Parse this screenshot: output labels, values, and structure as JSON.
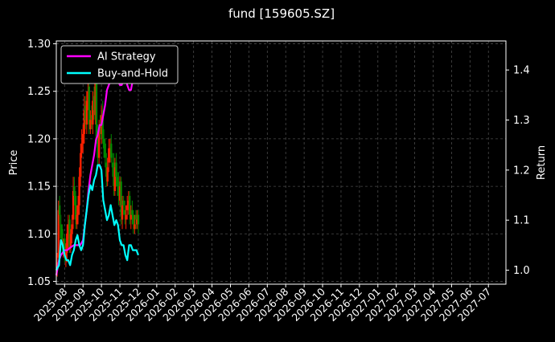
{
  "chart_data": {
    "type": "line",
    "title": "fund [159605.SZ]",
    "ylabel": "Price",
    "y2label": "Return",
    "ylim": [
      1.047,
      1.303
    ],
    "y2lim": [
      0.972,
      1.458
    ],
    "yticks": [
      1.05,
      1.1,
      1.15,
      1.2,
      1.25,
      1.3
    ],
    "y2ticks": [
      1.0,
      1.1,
      1.2,
      1.3,
      1.4
    ],
    "xticks": [
      "2025-08",
      "2025-09",
      "2025-10",
      "2025-11",
      "2025-12",
      "2026-01",
      "2026-02",
      "2026-03",
      "2026-04",
      "2026-05",
      "2026-06",
      "2026-07",
      "2026-08",
      "2026-09",
      "2026-10",
      "2026-11",
      "2026-12",
      "2027-01",
      "2027-02",
      "2027-03",
      "2027-04",
      "2027-05",
      "2027-06",
      "2027-07"
    ],
    "xlim_months": [
      -0.45,
      23.95
    ],
    "grid": true,
    "legend_placement": "top-left",
    "colors": {
      "up": "#ff2000",
      "down": "#008800",
      "ai": "#ff00ff",
      "bh": "#00ffff",
      "grid": "#4a4a4a"
    },
    "series": [
      {
        "name": "AI Strategy",
        "axis": "return",
        "t": [
          -0.45,
          -0.3,
          -0.2,
          0,
          0.15,
          0.3,
          0.5,
          0.7,
          0.85,
          1.0,
          1.1,
          1.2,
          1.3,
          1.4,
          1.5,
          1.6,
          1.7,
          1.8,
          1.9,
          2.0,
          2.1,
          2.2,
          2.3,
          2.4,
          2.5,
          2.6,
          2.7,
          2.8,
          2.9,
          3.0,
          3.1,
          3.2,
          3.3,
          3.4,
          3.5,
          3.6,
          3.7,
          3.8,
          3.9,
          4.0
        ],
        "values": [
          0.99,
          1.02,
          1.03,
          1.04,
          1.04,
          1.045,
          1.05,
          1.05,
          1.05,
          1.06,
          1.09,
          1.12,
          1.16,
          1.19,
          1.21,
          1.23,
          1.26,
          1.27,
          1.29,
          1.29,
          1.31,
          1.33,
          1.36,
          1.37,
          1.38,
          1.39,
          1.4,
          1.39,
          1.38,
          1.37,
          1.37,
          1.38,
          1.39,
          1.37,
          1.36,
          1.36,
          1.38,
          1.42,
          1.43,
          1.43
        ]
      },
      {
        "name": "Buy-and-Hold",
        "axis": "return",
        "t": [
          -0.45,
          -0.3,
          -0.2,
          -0.1,
          0.0,
          0.1,
          0.2,
          0.3,
          0.4,
          0.5,
          0.6,
          0.7,
          0.8,
          0.9,
          1.0,
          1.1,
          1.2,
          1.3,
          1.4,
          1.5,
          1.6,
          1.7,
          1.8,
          1.9,
          2.0,
          2.1,
          2.2,
          2.3,
          2.4,
          2.5,
          2.6,
          2.7,
          2.8,
          2.9,
          3.0,
          3.1,
          3.2,
          3.3,
          3.4,
          3.5,
          3.6,
          3.7,
          3.8,
          3.9,
          4.0
        ],
        "values": [
          1.0,
          1.01,
          1.06,
          1.05,
          1.03,
          1.02,
          1.02,
          1.01,
          1.03,
          1.04,
          1.06,
          1.07,
          1.05,
          1.04,
          1.05,
          1.09,
          1.12,
          1.15,
          1.17,
          1.16,
          1.18,
          1.19,
          1.21,
          1.21,
          1.2,
          1.14,
          1.12,
          1.1,
          1.11,
          1.13,
          1.11,
          1.09,
          1.1,
          1.09,
          1.06,
          1.05,
          1.05,
          1.03,
          1.02,
          1.05,
          1.05,
          1.04,
          1.04,
          1.04,
          1.03
        ]
      }
    ],
    "candles": {
      "axis": "price",
      "t": [
        -0.4,
        -0.33,
        -0.27,
        -0.2,
        -0.13,
        -0.07,
        0.0,
        0.07,
        0.13,
        0.2,
        0.27,
        0.33,
        0.4,
        0.47,
        0.53,
        0.6,
        0.67,
        0.73,
        0.8,
        0.87,
        0.93,
        1.0,
        1.07,
        1.13,
        1.2,
        1.27,
        1.33,
        1.4,
        1.47,
        1.53,
        1.6,
        1.67,
        1.73,
        1.8,
        1.87,
        1.93,
        2.0,
        2.07,
        2.13,
        2.2,
        2.27,
        2.33,
        2.4,
        2.47,
        2.53,
        2.6,
        2.67,
        2.73,
        2.8,
        2.87,
        2.93,
        3.0,
        3.07,
        3.13,
        3.2,
        3.27,
        3.33,
        3.4,
        3.47,
        3.53,
        3.6,
        3.67,
        3.73,
        3.8,
        3.87,
        3.93,
        4.0
      ],
      "close": [
        1.07,
        1.125,
        1.12,
        1.095,
        1.09,
        1.09,
        1.08,
        1.08,
        1.1,
        1.11,
        1.085,
        1.1,
        1.11,
        1.145,
        1.14,
        1.115,
        1.12,
        1.13,
        1.16,
        1.185,
        1.195,
        1.205,
        1.23,
        1.22,
        1.24,
        1.25,
        1.215,
        1.22,
        1.22,
        1.24,
        1.23,
        1.26,
        1.2,
        1.18,
        1.21,
        1.21,
        1.225,
        1.2,
        1.19,
        1.18,
        1.16,
        1.17,
        1.19,
        1.19,
        1.18,
        1.17,
        1.15,
        1.17,
        1.16,
        1.15,
        1.14,
        1.15,
        1.12,
        1.13,
        1.13,
        1.12,
        1.12,
        1.13,
        1.135,
        1.12,
        1.12,
        1.12,
        1.11,
        1.11,
        1.115,
        1.115,
        1.11
      ],
      "open": [
        1.065,
        1.075,
        1.13,
        1.11,
        1.105,
        1.085,
        1.095,
        1.075,
        1.08,
        1.095,
        1.115,
        1.085,
        1.1,
        1.115,
        1.15,
        1.14,
        1.11,
        1.12,
        1.13,
        1.16,
        1.185,
        1.195,
        1.205,
        1.235,
        1.215,
        1.24,
        1.255,
        1.21,
        1.225,
        1.215,
        1.245,
        1.225,
        1.265,
        1.205,
        1.18,
        1.215,
        1.205,
        1.23,
        1.2,
        1.195,
        1.175,
        1.155,
        1.175,
        1.185,
        1.195,
        1.175,
        1.175,
        1.145,
        1.175,
        1.16,
        1.155,
        1.135,
        1.155,
        1.115,
        1.135,
        1.125,
        1.115,
        1.125,
        1.13,
        1.14,
        1.115,
        1.125,
        1.12,
        1.105,
        1.12,
        1.11,
        1.12
      ],
      "high": [
        1.08,
        1.135,
        1.14,
        1.12,
        1.11,
        1.095,
        1.1,
        1.09,
        1.11,
        1.12,
        1.12,
        1.105,
        1.12,
        1.16,
        1.16,
        1.145,
        1.13,
        1.14,
        1.17,
        1.195,
        1.21,
        1.215,
        1.245,
        1.245,
        1.25,
        1.265,
        1.265,
        1.23,
        1.235,
        1.25,
        1.255,
        1.275,
        1.275,
        1.215,
        1.22,
        1.225,
        1.235,
        1.24,
        1.21,
        1.2,
        1.185,
        1.18,
        1.2,
        1.2,
        1.205,
        1.185,
        1.185,
        1.18,
        1.185,
        1.165,
        1.165,
        1.16,
        1.16,
        1.14,
        1.14,
        1.135,
        1.13,
        1.14,
        1.145,
        1.145,
        1.13,
        1.135,
        1.125,
        1.12,
        1.125,
        1.125,
        1.125
      ],
      "low": [
        1.055,
        1.07,
        1.11,
        1.085,
        1.08,
        1.075,
        1.07,
        1.065,
        1.07,
        1.085,
        1.08,
        1.08,
        1.09,
        1.105,
        1.13,
        1.105,
        1.105,
        1.11,
        1.12,
        1.15,
        1.18,
        1.185,
        1.195,
        1.21,
        1.205,
        1.23,
        1.205,
        1.205,
        1.21,
        1.205,
        1.22,
        1.215,
        1.195,
        1.17,
        1.17,
        1.2,
        1.195,
        1.195,
        1.18,
        1.17,
        1.15,
        1.15,
        1.165,
        1.175,
        1.175,
        1.16,
        1.14,
        1.14,
        1.15,
        1.14,
        1.13,
        1.13,
        1.11,
        1.105,
        1.12,
        1.11,
        1.105,
        1.115,
        1.12,
        1.11,
        1.105,
        1.11,
        1.1,
        1.1,
        1.105,
        1.105,
        1.1
      ]
    }
  }
}
